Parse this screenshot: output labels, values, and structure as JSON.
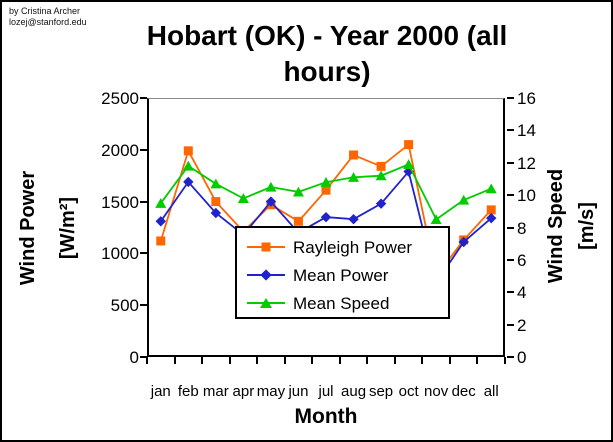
{
  "credit": {
    "line1": "by Cristina Archer",
    "line2": "lozej@stanford.edu"
  },
  "title": "Hobart (OK) - Year 2000 (all hours)",
  "axes": {
    "left_title_line1": "Wind Power",
    "left_title_line2": "[W/m²]",
    "right_title_line1": "Wind Speed",
    "right_title_line2": "[m/s]"
  },
  "chart_data": {
    "type": "line",
    "title": "Hobart (OK) - Year 2000 (all hours)",
    "categories": [
      "jan",
      "feb",
      "mar",
      "apr",
      "may",
      "jun",
      "jul",
      "aug",
      "sep",
      "oct",
      "nov",
      "dec",
      "all"
    ],
    "xlabel": "Month",
    "y_left": {
      "label": "Wind Power [W/m²]",
      "range": [
        0,
        2500
      ],
      "ticks": [
        0,
        500,
        1000,
        1500,
        2000,
        2500
      ]
    },
    "y_right": {
      "label": "Wind Speed [m/s]",
      "range": [
        0,
        16
      ],
      "ticks": [
        0,
        2,
        4,
        6,
        8,
        10,
        12,
        14,
        16
      ]
    },
    "grid": "top-border-only",
    "legend_position": "center-overlay",
    "series": [
      {
        "name": "Rayleigh Power",
        "axis": "left",
        "color": "#FF6600",
        "marker": "square",
        "values": [
          1120,
          1990,
          1500,
          1210,
          1470,
          1310,
          1610,
          1950,
          1840,
          2050,
          780,
          1130,
          1420
        ]
      },
      {
        "name": "Mean Power",
        "axis": "left",
        "color": "#2222CC",
        "marker": "diamond",
        "values": [
          1310,
          1690,
          1390,
          1180,
          1500,
          1200,
          1350,
          1330,
          1480,
          1790,
          720,
          1110,
          1340
        ]
      },
      {
        "name": "Mean Speed",
        "axis": "right",
        "color": "#00CC00",
        "marker": "triangle",
        "values": [
          9.5,
          11.8,
          10.7,
          9.8,
          10.5,
          10.2,
          10.8,
          11.1,
          11.2,
          11.9,
          8.5,
          9.7,
          10.4
        ]
      }
    ]
  }
}
